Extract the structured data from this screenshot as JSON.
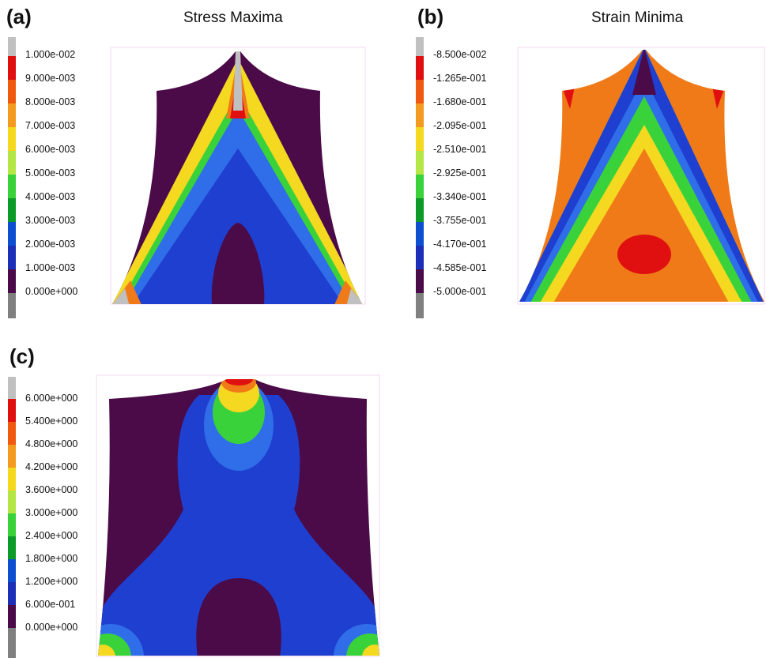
{
  "panels": [
    {
      "id": "a",
      "label": "(a)",
      "title": "Stress Maxima",
      "legend_colors": [
        "#c0c0c0",
        "#e01010",
        "#f05a10",
        "#f49a20",
        "#f5d820",
        "#b4e646",
        "#3ad23a",
        "#0c9a28",
        "#0e4fd2",
        "#1c2fb8",
        "#4b0a48",
        "#808080"
      ],
      "legend_labels": [
        "1.000e-002",
        "9.000e-003",
        "8.000e-003",
        "7.000e-003",
        "6.000e-003",
        "5.000e-003",
        "4.000e-003",
        "3.000e-003",
        "2.000e-003",
        "1.000e-003",
        "0.000e+000"
      ]
    },
    {
      "id": "b",
      "label": "(b)",
      "title": "Strain Minima",
      "legend_colors": [
        "#c0c0c0",
        "#e01010",
        "#f05a10",
        "#f49a20",
        "#f5d820",
        "#b4e646",
        "#3ad23a",
        "#0c9a28",
        "#0e4fd2",
        "#1c2fb8",
        "#4b0a48",
        "#808080"
      ],
      "legend_labels": [
        "-8.500e-002",
        "-1.265e-001",
        "-1.680e-001",
        "-2.095e-001",
        "-2.510e-001",
        "-2.925e-001",
        "-3.340e-001",
        "-3.755e-001",
        "-4.170e-001",
        "-4.585e-001",
        "-5.000e-001"
      ]
    },
    {
      "id": "c",
      "label": "(c)",
      "title": "",
      "legend_colors": [
        "#c0c0c0",
        "#e01010",
        "#f05a10",
        "#f49a20",
        "#f5d820",
        "#b4e646",
        "#3ad23a",
        "#0c9a28",
        "#0e4fd2",
        "#1c2fb8",
        "#4b0a48",
        "#808080"
      ],
      "legend_labels": [
        "6.000e+000",
        "5.400e+000",
        "4.800e+000",
        "4.200e+000",
        "3.600e+000",
        "3.000e+000",
        "2.400e+000",
        "1.800e+000",
        "1.200e+000",
        "6.000e-001",
        "0.000e+000"
      ]
    }
  ],
  "colors": {
    "purple": "#4b0a48",
    "blue": "#1f3fd0",
    "light_blue": "#2f6ee8",
    "green": "#3ad23a",
    "yellow": "#f5d820",
    "orange": "#f07a18",
    "red": "#e01010",
    "grey": "#c0c0c0"
  }
}
